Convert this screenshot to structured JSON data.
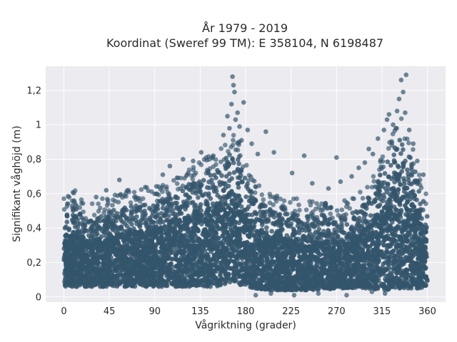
{
  "chart_data": {
    "type": "scatter",
    "title_line1": "År 1979 - 2019",
    "title_line2": "Koordinat (Sweref 99 TM): E 358104, N 6198487",
    "xlabel": "Vågriktning (grader)",
    "ylabel": "Signifikant våghöjd (m)",
    "xlim": [
      -18,
      378
    ],
    "ylim": [
      -0.03,
      1.34
    ],
    "x_ticks": [
      0,
      45,
      90,
      135,
      180,
      225,
      270,
      315,
      360
    ],
    "x_tick_labels": [
      "0",
      "45",
      "90",
      "135",
      "180",
      "225",
      "270",
      "315",
      "360"
    ],
    "y_ticks": [
      0,
      0.2,
      0.4,
      0.6,
      0.8,
      1.0,
      1.2
    ],
    "y_tick_labels": [
      "0",
      "0,2",
      "0,4",
      "0,6",
      "0,8",
      "1",
      "1,2"
    ],
    "grid": true,
    "marker_color": "#34556b",
    "plot_background": "#ebebf0",
    "envelope": {
      "direction_deg": [
        0,
        10,
        20,
        30,
        45,
        60,
        75,
        90,
        105,
        120,
        135,
        150,
        160,
        165,
        170,
        175,
        180,
        190,
        200,
        225,
        250,
        270,
        290,
        300,
        310,
        320,
        330,
        335,
        340,
        350,
        360
      ],
      "upper_dense_m": [
        0.5,
        0.53,
        0.45,
        0.46,
        0.5,
        0.52,
        0.54,
        0.54,
        0.6,
        0.64,
        0.7,
        0.74,
        0.8,
        0.86,
        0.85,
        0.8,
        0.68,
        0.56,
        0.52,
        0.48,
        0.46,
        0.45,
        0.5,
        0.56,
        0.66,
        0.78,
        0.9,
        0.95,
        0.88,
        0.7,
        0.5
      ],
      "lower_dense_m": [
        0.06,
        0.06,
        0.06,
        0.06,
        0.06,
        0.06,
        0.06,
        0.06,
        0.06,
        0.06,
        0.06,
        0.06,
        0.07,
        0.08,
        0.08,
        0.07,
        0.06,
        0.05,
        0.04,
        0.04,
        0.04,
        0.05,
        0.05,
        0.05,
        0.04,
        0.04,
        0.05,
        0.05,
        0.05,
        0.05,
        0.06
      ]
    },
    "outliers": [
      {
        "x": 10,
        "y": 0.56
      },
      {
        "x": 32,
        "y": 0.58
      },
      {
        "x": 42,
        "y": 0.62
      },
      {
        "x": 55,
        "y": 0.68
      },
      {
        "x": 70,
        "y": 0.58
      },
      {
        "x": 98,
        "y": 0.71
      },
      {
        "x": 105,
        "y": 0.76
      },
      {
        "x": 118,
        "y": 0.8
      },
      {
        "x": 128,
        "y": 0.79
      },
      {
        "x": 136,
        "y": 0.84
      },
      {
        "x": 148,
        "y": 0.82
      },
      {
        "x": 158,
        "y": 0.94
      },
      {
        "x": 162,
        "y": 1.05
      },
      {
        "x": 164,
        "y": 0.98
      },
      {
        "x": 166,
        "y": 1.12
      },
      {
        "x": 167,
        "y": 1.28
      },
      {
        "x": 168,
        "y": 1.23
      },
      {
        "x": 169,
        "y": 1.19
      },
      {
        "x": 170,
        "y": 1.03
      },
      {
        "x": 172,
        "y": 1.07
      },
      {
        "x": 174,
        "y": 0.99
      },
      {
        "x": 176,
        "y": 0.91
      },
      {
        "x": 178,
        "y": 1.13
      },
      {
        "x": 182,
        "y": 0.97
      },
      {
        "x": 186,
        "y": 0.89
      },
      {
        "x": 192,
        "y": 0.83
      },
      {
        "x": 200,
        "y": 0.96
      },
      {
        "x": 208,
        "y": 0.84
      },
      {
        "x": 226,
        "y": 0.72
      },
      {
        "x": 238,
        "y": 0.82
      },
      {
        "x": 246,
        "y": 0.66
      },
      {
        "x": 262,
        "y": 0.63
      },
      {
        "x": 270,
        "y": 0.81
      },
      {
        "x": 274,
        "y": 0.67
      },
      {
        "x": 285,
        "y": 0.7
      },
      {
        "x": 292,
        "y": 0.75
      },
      {
        "x": 298,
        "y": 0.78
      },
      {
        "x": 302,
        "y": 0.86
      },
      {
        "x": 306,
        "y": 0.83
      },
      {
        "x": 311,
        "y": 0.92
      },
      {
        "x": 317,
        "y": 0.97
      },
      {
        "x": 320,
        "y": 1.03
      },
      {
        "x": 322,
        "y": 1.06
      },
      {
        "x": 326,
        "y": 1.0
      },
      {
        "x": 330,
        "y": 1.08
      },
      {
        "x": 332,
        "y": 1.15
      },
      {
        "x": 334,
        "y": 1.26
      },
      {
        "x": 336,
        "y": 1.19
      },
      {
        "x": 338,
        "y": 1.07
      },
      {
        "x": 339,
        "y": 1.29
      },
      {
        "x": 342,
        "y": 0.97
      },
      {
        "x": 346,
        "y": 0.89
      },
      {
        "x": 350,
        "y": 0.79
      },
      {
        "x": 356,
        "y": 0.71
      },
      {
        "x": 190,
        "y": 0.01
      },
      {
        "x": 205,
        "y": 0.02
      },
      {
        "x": 228,
        "y": 0.01
      },
      {
        "x": 252,
        "y": 0.02
      },
      {
        "x": 280,
        "y": 0.01
      },
      {
        "x": 305,
        "y": 0.03
      },
      {
        "x": 318,
        "y": 0.02
      }
    ]
  }
}
